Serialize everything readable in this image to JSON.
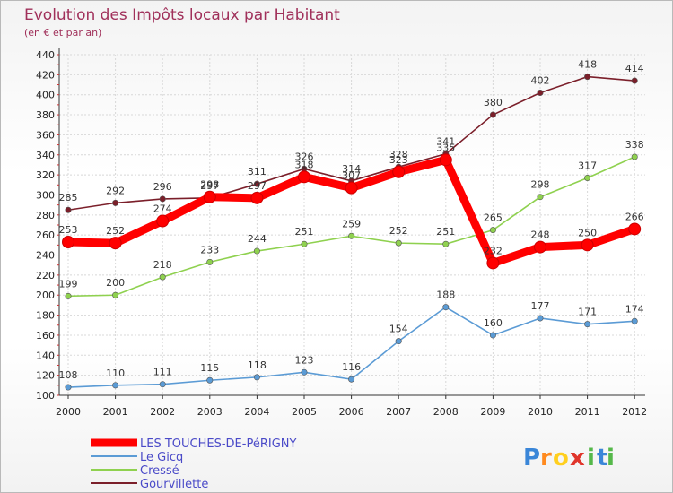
{
  "chart_data": {
    "type": "line",
    "title": "Evolution des Impôts locaux par Habitant",
    "subtitle": "(en € et par an)",
    "x": [
      "2000",
      "2001",
      "2002",
      "2003",
      "2004",
      "2005",
      "2006",
      "2007",
      "2008",
      "2009",
      "2010",
      "2011",
      "2012"
    ],
    "ylim": [
      100,
      440
    ],
    "yticks": [
      100,
      120,
      140,
      160,
      180,
      200,
      220,
      240,
      260,
      280,
      300,
      320,
      340,
      360,
      380,
      400,
      420,
      440
    ],
    "grid": true,
    "legend_position": "bottom-left",
    "series": [
      {
        "name": "LES TOUCHES-DE-PéRIGNY",
        "color": "#ff0000",
        "values": [
          253,
          252,
          274,
          298,
          297,
          318,
          307,
          323,
          335,
          232,
          248,
          250,
          266
        ]
      },
      {
        "name": "Le Gicq",
        "color": "#5b9bd5",
        "values": [
          108,
          110,
          111,
          115,
          118,
          123,
          116,
          154,
          188,
          160,
          177,
          171,
          174
        ]
      },
      {
        "name": "Cressé",
        "color": "#8fd14f",
        "values": [
          199,
          200,
          218,
          233,
          244,
          251,
          259,
          252,
          251,
          265,
          298,
          317,
          338
        ]
      },
      {
        "name": "Gourvillette",
        "color": "#7b1f2a",
        "values": [
          285,
          292,
          296,
          297,
          311,
          326,
          314,
          328,
          341,
          380,
          402,
          418,
          414
        ]
      }
    ]
  },
  "logo": {
    "letters": [
      "P",
      "r",
      "o",
      "x",
      "i",
      "t",
      "i"
    ],
    "colors": [
      "#3a86d8",
      "#ff8a1f",
      "#ffcf1f",
      "#e0352b",
      "#55b84a",
      "#3a86d8",
      "#55b84a"
    ]
  }
}
